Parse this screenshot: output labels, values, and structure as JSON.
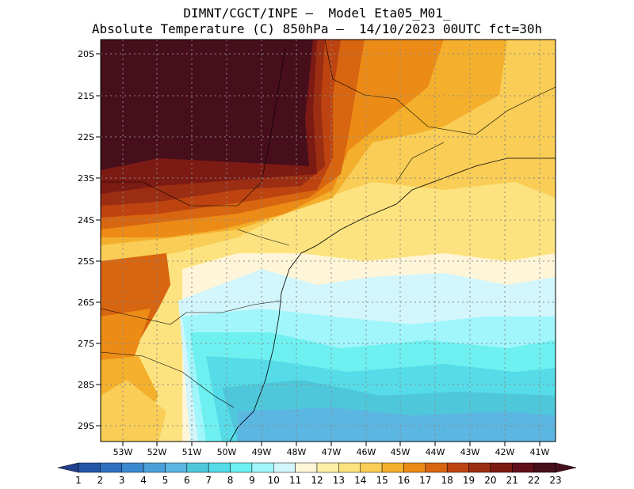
{
  "title_line1": "DIMNT/CGCT/INPE –  Model Eta05_M01_",
  "title_line2": "Absolute Temperature (C) 850hPa –  14/10/2023 00UTC fct=30h",
  "lat_labels": [
    "20S",
    "21S",
    "22S",
    "23S",
    "24S",
    "25S",
    "26S",
    "27S",
    "28S",
    "29S"
  ],
  "lon_labels": [
    "53W",
    "52W",
    "51W",
    "50W",
    "49W",
    "48W",
    "47W",
    "46W",
    "45W",
    "44W",
    "43W",
    "42W",
    "41W"
  ],
  "colorbar": {
    "labels": [
      "1",
      "2",
      "3",
      "4",
      "5",
      "6",
      "7",
      "8",
      "9",
      "10",
      "11",
      "12",
      "13",
      "14",
      "15",
      "16",
      "17",
      "18",
      "19",
      "20",
      "21",
      "22",
      "23"
    ],
    "colors": [
      "#1f3f8f",
      "#2356a8",
      "#2e6fbe",
      "#3a88cf",
      "#4aa0da",
      "#5cb6e2",
      "#4fc7da",
      "#55dce8",
      "#6ef0f0",
      "#a0f6fa",
      "#d2f6fb",
      "#fff5d8",
      "#fff0a6",
      "#fde37f",
      "#f9cd56",
      "#f4b02c",
      "#ec8c16",
      "#d86510",
      "#bd4410",
      "#9b2d12",
      "#7c1a14",
      "#61101a",
      "#470e1c"
    ]
  }
}
